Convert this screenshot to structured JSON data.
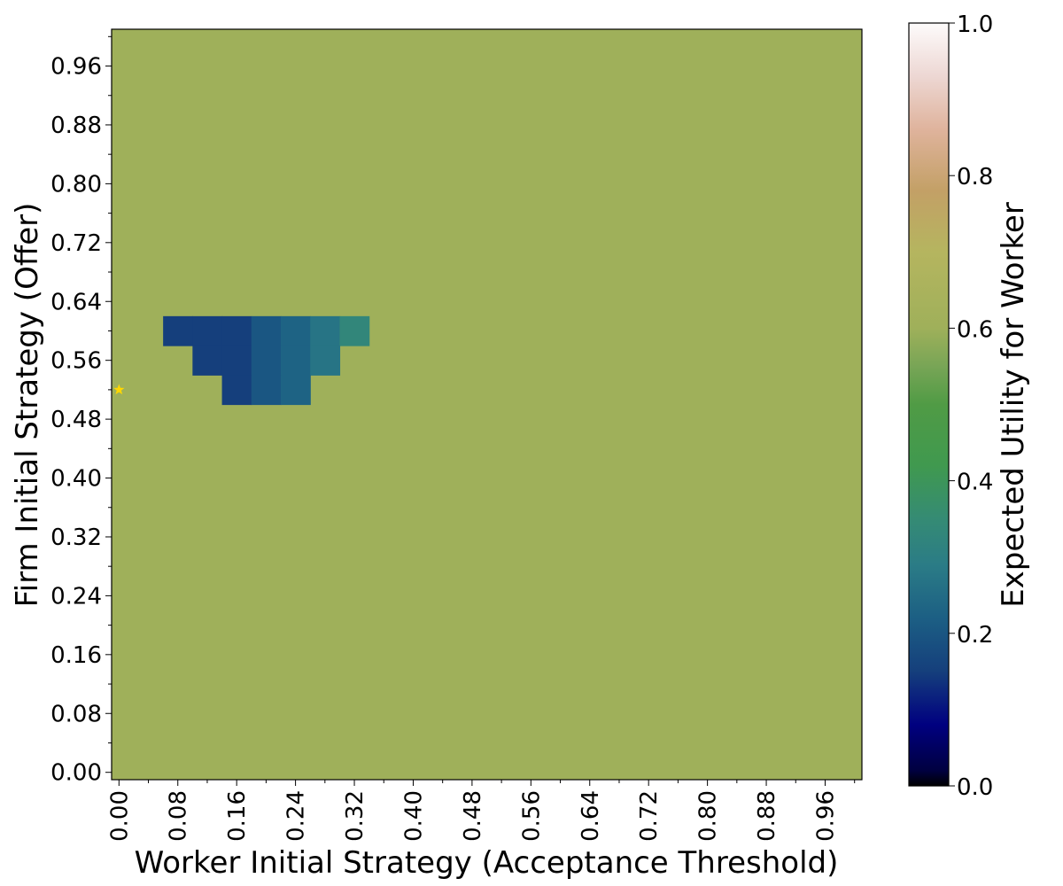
{
  "chart_data": {
    "type": "heatmap",
    "title": "",
    "xlabel": "Worker Initial Strategy (Acceptance Threshold)",
    "ylabel": "Firm Initial Strategy (Offer)",
    "colorbar_label": "Expected Utility for Worker",
    "colormap": "gist_earth",
    "xlim": [
      -0.01,
      1.01
    ],
    "ylim": [
      -0.01,
      1.01
    ],
    "clim": [
      0,
      1
    ],
    "step": 0.04,
    "x_ticks": [
      "0.00",
      "0.08",
      "0.16",
      "0.24",
      "0.32",
      "0.40",
      "0.48",
      "0.56",
      "0.64",
      "0.72",
      "0.80",
      "0.88",
      "0.96"
    ],
    "y_ticks": [
      "0.00",
      "0.08",
      "0.16",
      "0.24",
      "0.32",
      "0.40",
      "0.48",
      "0.56",
      "0.64",
      "0.72",
      "0.80",
      "0.88",
      "0.96"
    ],
    "colorbar_ticks": [
      "0.0",
      "0.2",
      "0.4",
      "0.6",
      "0.8",
      "1.0"
    ],
    "default_value": 0.6,
    "exception_cells": [
      {
        "x": 0.08,
        "y": 0.6,
        "value": 0.15
      },
      {
        "x": 0.12,
        "y": 0.6,
        "value": 0.15
      },
      {
        "x": 0.16,
        "y": 0.6,
        "value": 0.15
      },
      {
        "x": 0.2,
        "y": 0.6,
        "value": 0.2
      },
      {
        "x": 0.24,
        "y": 0.6,
        "value": 0.23
      },
      {
        "x": 0.28,
        "y": 0.6,
        "value": 0.27
      },
      {
        "x": 0.32,
        "y": 0.6,
        "value": 0.33
      },
      {
        "x": 0.12,
        "y": 0.56,
        "value": 0.15
      },
      {
        "x": 0.16,
        "y": 0.56,
        "value": 0.15
      },
      {
        "x": 0.2,
        "y": 0.56,
        "value": 0.2
      },
      {
        "x": 0.24,
        "y": 0.56,
        "value": 0.23
      },
      {
        "x": 0.28,
        "y": 0.56,
        "value": 0.27
      },
      {
        "x": 0.16,
        "y": 0.52,
        "value": 0.15
      },
      {
        "x": 0.2,
        "y": 0.52,
        "value": 0.2
      },
      {
        "x": 0.24,
        "y": 0.52,
        "value": 0.23
      }
    ],
    "marker": {
      "symbol": "star",
      "x": 0.0,
      "y": 0.52,
      "color": "#ffd700"
    },
    "grid": false,
    "legend": "none"
  }
}
